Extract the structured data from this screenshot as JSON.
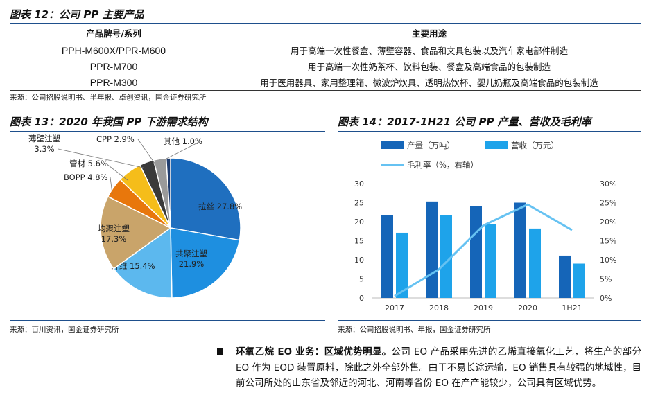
{
  "fig12": {
    "title": "图表 12：公司 PP 主要产品",
    "headers": [
      "产品牌号/系列",
      "主要用途"
    ],
    "rows": [
      {
        "product": "PPH-M600X/PPR-M600",
        "use": "用于高端一次性餐盒、薄壁容器、食品和文具包装以及汽车家电部件制造"
      },
      {
        "product": "PPR-M700",
        "use": "用于高端一次性奶茶杯、饮料包装、餐盒及高端食品的包装制造"
      },
      {
        "product": "PPR-M300",
        "use": "用于医用器具、家用整理箱、微波炉炊具、透明热饮杯、婴儿奶瓶及高端食品的包装制造"
      }
    ],
    "source": "来源：公司招股说明书、半年报、卓创资讯，国金证券研究所"
  },
  "fig13": {
    "title": "图表 13：2020 年我国 PP 下游需求结构",
    "source": "来源：百川资讯，国金证券研究所"
  },
  "fig14": {
    "title": "图表 14：2017-1H21 公司 PP 产量、营收及毛利率",
    "source": "来源：公司招股说明书、年报，国金证券研究所"
  },
  "paragraph": {
    "lead": "环氧乙烷 EO 业务：区域优势明显。",
    "body": "公司 EO 产品采用先进的乙烯直接氧化工艺，将生产的部分 EO 作为 EOD 装置原料，除此之外全部外售。由于不易长途运输，EO 销售具有较强的地域性，目前公司所处的山东省及邻近的河北、河南等省份 EO 在产产能较少，公司具有区域优势。"
  },
  "chart_data": [
    {
      "type": "pie",
      "slices": [
        {
          "label": "拉丝",
          "value": 27.8,
          "text": "拉丝 27.8%",
          "color": "#1f6fbf"
        },
        {
          "label": "共聚注塑",
          "value": 21.9,
          "text": "共聚注塑\n21.9%",
          "color": "#1e8fe0"
        },
        {
          "label": "纤维",
          "value": 15.4,
          "text": "纤维 15.4%",
          "color": "#5cb8ee"
        },
        {
          "label": "均聚注塑",
          "value": 17.3,
          "text": "均聚注塑\n17.3%",
          "color": "#c9a46a"
        },
        {
          "label": "BOPP",
          "value": 4.8,
          "text": "BOPP 4.8%",
          "color": "#e8770c"
        },
        {
          "label": "管材",
          "value": 5.6,
          "text": "管材 5.6%",
          "color": "#f5bd1a"
        },
        {
          "label": "薄壁注塑",
          "value": 3.3,
          "text": "薄壁注塑\n3.3%",
          "color": "#3a3a3a"
        },
        {
          "label": "CPP",
          "value": 2.9,
          "text": "CPP 2.9%",
          "color": "#9a9a9a"
        },
        {
          "label": "其他",
          "value": 1.0,
          "text": "其他 1.0%",
          "color": "#1f3c6e"
        }
      ]
    },
    {
      "type": "bar",
      "categories": [
        "2017",
        "2018",
        "2019",
        "2020",
        "1H21"
      ],
      "series": [
        {
          "name": "产量（万吨）",
          "values": [
            21.8,
            25.3,
            24.0,
            25.0,
            11.1
          ],
          "color": "#1565b8",
          "axis": "left"
        },
        {
          "name": "营收（万元）",
          "values": [
            17.1,
            21.8,
            19.4,
            18.2,
            9.0
          ],
          "color": "#1ea3ea",
          "axis": "left"
        },
        {
          "name": "毛利率（%，右轴）",
          "type": "line",
          "values": [
            0.5,
            7.5,
            19.0,
            24.5,
            17.8
          ],
          "color": "#66c2f2",
          "axis": "right"
        }
      ],
      "yleft": {
        "ticks": [
          "0",
          "5",
          "10",
          "15",
          "20",
          "25",
          "30"
        ],
        "lim": [
          0,
          30
        ]
      },
      "yright": {
        "ticks": [
          "0%",
          "5%",
          "10%",
          "15%",
          "20%",
          "25%",
          "30%"
        ],
        "lim": [
          0,
          30
        ]
      },
      "legend_position": "top"
    }
  ]
}
